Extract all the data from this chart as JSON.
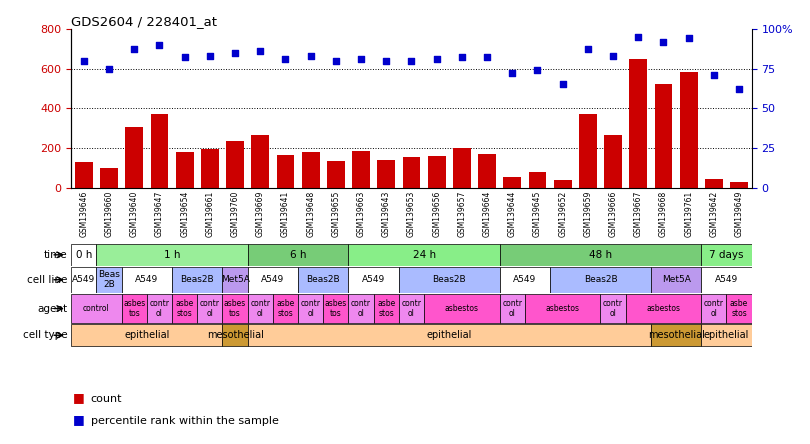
{
  "title": "GDS2604 / 228401_at",
  "samples": [
    "GSM139646",
    "GSM139660",
    "GSM139640",
    "GSM139647",
    "GSM139654",
    "GSM139661",
    "GSM139760",
    "GSM139669",
    "GSM139641",
    "GSM139648",
    "GSM139655",
    "GSM139663",
    "GSM139643",
    "GSM139653",
    "GSM139656",
    "GSM139657",
    "GSM139664",
    "GSM139644",
    "GSM139645",
    "GSM139652",
    "GSM139659",
    "GSM139666",
    "GSM139667",
    "GSM139668",
    "GSM139761",
    "GSM139642",
    "GSM139649"
  ],
  "counts": [
    130,
    100,
    305,
    370,
    180,
    195,
    235,
    265,
    165,
    180,
    135,
    185,
    140,
    155,
    160,
    200,
    170,
    55,
    80,
    40,
    370,
    265,
    650,
    520,
    585,
    45,
    30
  ],
  "percentile_ranks": [
    80,
    75,
    87,
    90,
    82,
    83,
    85,
    86,
    81,
    83,
    80,
    81,
    80,
    80,
    81,
    82,
    82,
    72,
    74,
    65,
    87,
    83,
    95,
    92,
    94,
    71,
    62
  ],
  "bar_color": "#CC0000",
  "dot_color": "#0000CC",
  "bg_color": "#FFFFFF",
  "sample_bg": "#CCCCCC",
  "left_yticks": [
    0,
    200,
    400,
    600,
    800
  ],
  "right_yticks": [
    0,
    25,
    50,
    75,
    100
  ],
  "time_row": {
    "label": "time",
    "segments": [
      {
        "text": "0 h",
        "start": 0,
        "end": 1,
        "color": "#FFFFFF"
      },
      {
        "text": "1 h",
        "start": 1,
        "end": 7,
        "color": "#99EE99"
      },
      {
        "text": "6 h",
        "start": 7,
        "end": 11,
        "color": "#77CC77"
      },
      {
        "text": "24 h",
        "start": 11,
        "end": 17,
        "color": "#88EE88"
      },
      {
        "text": "48 h",
        "start": 17,
        "end": 25,
        "color": "#77CC77"
      },
      {
        "text": "7 days",
        "start": 25,
        "end": 27,
        "color": "#88EE88"
      }
    ]
  },
  "cell_line_row": {
    "label": "cell line",
    "segments": [
      {
        "text": "A549",
        "start": 0,
        "end": 1,
        "color": "#FFFFFF"
      },
      {
        "text": "Beas\n2B",
        "start": 1,
        "end": 2,
        "color": "#AABBFF"
      },
      {
        "text": "A549",
        "start": 2,
        "end": 4,
        "color": "#FFFFFF"
      },
      {
        "text": "Beas2B",
        "start": 4,
        "end": 6,
        "color": "#AABBFF"
      },
      {
        "text": "Met5A",
        "start": 6,
        "end": 7,
        "color": "#BB99EE"
      },
      {
        "text": "A549",
        "start": 7,
        "end": 9,
        "color": "#FFFFFF"
      },
      {
        "text": "Beas2B",
        "start": 9,
        "end": 11,
        "color": "#AABBFF"
      },
      {
        "text": "A549",
        "start": 11,
        "end": 13,
        "color": "#FFFFFF"
      },
      {
        "text": "Beas2B",
        "start": 13,
        "end": 17,
        "color": "#AABBFF"
      },
      {
        "text": "A549",
        "start": 17,
        "end": 19,
        "color": "#FFFFFF"
      },
      {
        "text": "Beas2B",
        "start": 19,
        "end": 23,
        "color": "#AABBFF"
      },
      {
        "text": "Met5A",
        "start": 23,
        "end": 25,
        "color": "#BB99EE"
      },
      {
        "text": "A549",
        "start": 25,
        "end": 27,
        "color": "#FFFFFF"
      }
    ]
  },
  "agent_row": {
    "label": "agent",
    "segments": [
      {
        "text": "control",
        "start": 0,
        "end": 2,
        "color": "#EE88EE"
      },
      {
        "text": "asbes\ntos",
        "start": 2,
        "end": 3,
        "color": "#FF55CC"
      },
      {
        "text": "contr\nol",
        "start": 3,
        "end": 4,
        "color": "#EE88EE"
      },
      {
        "text": "asbe\nstos",
        "start": 4,
        "end": 5,
        "color": "#FF55CC"
      },
      {
        "text": "contr\nol",
        "start": 5,
        "end": 6,
        "color": "#EE88EE"
      },
      {
        "text": "asbes\ntos",
        "start": 6,
        "end": 7,
        "color": "#FF55CC"
      },
      {
        "text": "contr\nol",
        "start": 7,
        "end": 8,
        "color": "#EE88EE"
      },
      {
        "text": "asbe\nstos",
        "start": 8,
        "end": 9,
        "color": "#FF55CC"
      },
      {
        "text": "contr\nol",
        "start": 9,
        "end": 10,
        "color": "#EE88EE"
      },
      {
        "text": "asbes\ntos",
        "start": 10,
        "end": 11,
        "color": "#FF55CC"
      },
      {
        "text": "contr\nol",
        "start": 11,
        "end": 12,
        "color": "#EE88EE"
      },
      {
        "text": "asbe\nstos",
        "start": 12,
        "end": 13,
        "color": "#FF55CC"
      },
      {
        "text": "contr\nol",
        "start": 13,
        "end": 14,
        "color": "#EE88EE"
      },
      {
        "text": "asbestos",
        "start": 14,
        "end": 17,
        "color": "#FF55CC"
      },
      {
        "text": "contr\nol",
        "start": 17,
        "end": 18,
        "color": "#EE88EE"
      },
      {
        "text": "asbestos",
        "start": 18,
        "end": 21,
        "color": "#FF55CC"
      },
      {
        "text": "contr\nol",
        "start": 21,
        "end": 22,
        "color": "#EE88EE"
      },
      {
        "text": "asbestos",
        "start": 22,
        "end": 25,
        "color": "#FF55CC"
      },
      {
        "text": "contr\nol",
        "start": 25,
        "end": 26,
        "color": "#EE88EE"
      },
      {
        "text": "asbe\nstos",
        "start": 26,
        "end": 27,
        "color": "#FF55CC"
      }
    ]
  },
  "cell_type_row": {
    "label": "cell type",
    "segments": [
      {
        "text": "epithelial",
        "start": 0,
        "end": 6,
        "color": "#FFCC99"
      },
      {
        "text": "mesothelial",
        "start": 6,
        "end": 7,
        "color": "#CC9933"
      },
      {
        "text": "epithelial",
        "start": 7,
        "end": 23,
        "color": "#FFCC99"
      },
      {
        "text": "mesothelial",
        "start": 23,
        "end": 25,
        "color": "#CC9933"
      },
      {
        "text": "epithelial",
        "start": 25,
        "end": 27,
        "color": "#FFCC99"
      }
    ]
  }
}
